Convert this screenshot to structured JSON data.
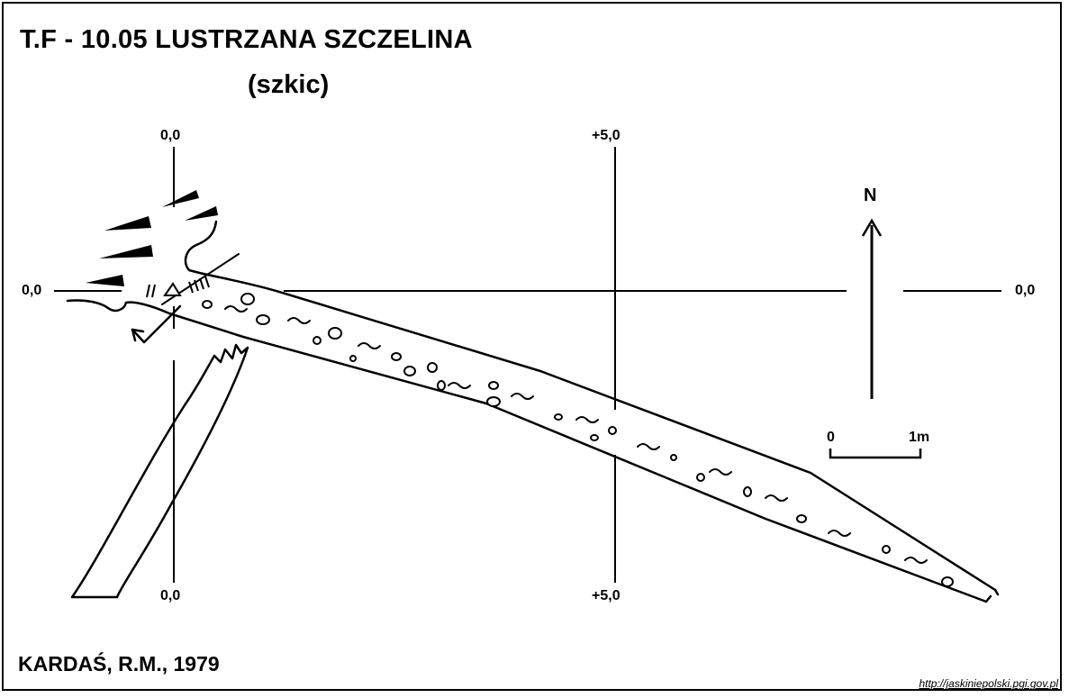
{
  "title": "T.F - 10.05  LUSTRZANA SZCZELINA",
  "subtitle": "(szkic)",
  "grid_labels": {
    "top_left": "0,0",
    "top_right": "+5,0",
    "left": "0,0",
    "right": "0,0",
    "bottom_left": "0,0",
    "bottom_right": "+5,0"
  },
  "north_label": "N",
  "scale": {
    "start": "0",
    "end": "1m"
  },
  "author": "KARDAŚ, R.M., 1979",
  "source_url": "http://jaskiniepolski.pgi.gov.pl",
  "colors": {
    "ink": "#000000",
    "paper": "#ffffff"
  }
}
